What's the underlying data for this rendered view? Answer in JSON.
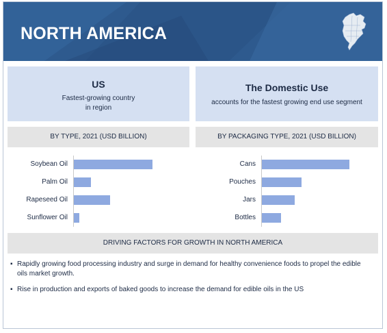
{
  "banner": {
    "title": "NORTH AMERICA",
    "map_icon": "north-america-map-icon"
  },
  "cards": [
    {
      "title": "US",
      "lines": [
        "Fastest-growing country",
        "in region"
      ]
    },
    {
      "title": "The Domestic Use",
      "lines": [
        "accounts for the fastest growing end use segment"
      ]
    }
  ],
  "colors": {
    "banner": "#2e5a8e",
    "card": "#d5e0f2",
    "header": "#e4e4e4",
    "bar": "#8ea9e0"
  },
  "chart_data": [
    {
      "type": "bar",
      "title": "BY TYPE, 2021 (USD BILLION)",
      "categories": [
        "Soybean Oil",
        "Palm Oil",
        "Rapeseed Oil",
        "Sunflower Oil"
      ],
      "values": [
        2.3,
        0.5,
        1.05,
        0.15
      ],
      "xlim": [
        0,
        3
      ]
    },
    {
      "type": "bar",
      "title": "BY PACKAGING TYPE, 2021 (USD BILLION)",
      "categories": [
        "Cans",
        "Pouches",
        "Jars",
        "Bottles"
      ],
      "values": [
        2.55,
        1.15,
        0.95,
        0.55
      ],
      "xlim": [
        0,
        3
      ]
    }
  ],
  "drivers": {
    "title": "DRIVING FACTORS FOR GROWTH IN NORTH AMERICA",
    "items": [
      "Rapidly growing food processing industry and surge in demand for healthy convenience foods to propel the edible oils market growth.",
      "Rise in production and exports of baked goods to increase the demand for edible oils in the US"
    ]
  }
}
